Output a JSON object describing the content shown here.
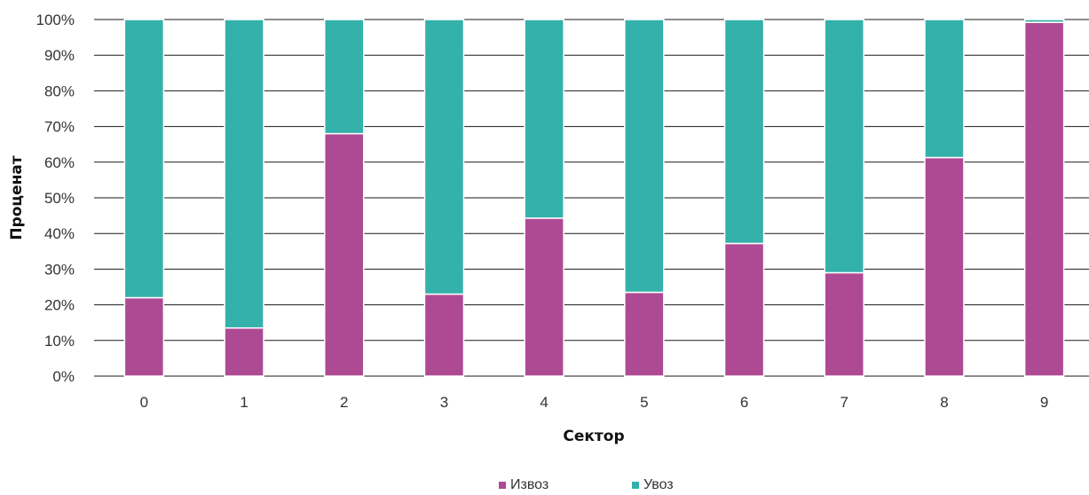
{
  "chart_data": {
    "type": "bar",
    "stacked": true,
    "categories": [
      "0",
      "1",
      "2",
      "3",
      "4",
      "5",
      "6",
      "7",
      "8",
      "9"
    ],
    "series": [
      {
        "name": "Извоз",
        "color": "#ae4a93",
        "values": [
          22,
          13.5,
          68,
          23,
          44.3,
          23.5,
          37.2,
          29,
          61.3,
          99.2
        ]
      },
      {
        "name": "Увоз",
        "color": "#34b1aa",
        "values": [
          78,
          86.5,
          32,
          77,
          55.7,
          76.5,
          62.8,
          71,
          38.7,
          0.8
        ]
      }
    ],
    "xlabel": "Сектор",
    "ylabel": "Проценат",
    "ylim": [
      0,
      100
    ],
    "yticks": [
      "0%",
      "10%",
      "20%",
      "30%",
      "40%",
      "50%",
      "60%",
      "70%",
      "80%",
      "90%",
      "100%"
    ],
    "grid": true,
    "legend_position": "bottom"
  }
}
